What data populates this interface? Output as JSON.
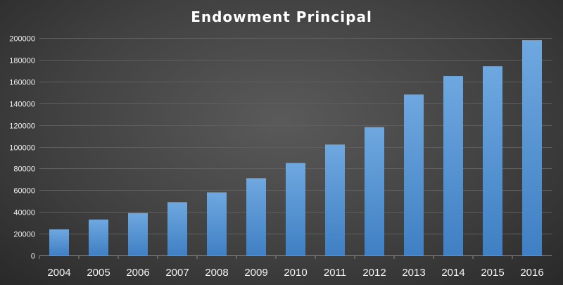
{
  "chart_data": {
    "type": "bar",
    "title": "Endowment Principal",
    "xlabel": "",
    "ylabel": "",
    "categories": [
      "2004",
      "2005",
      "2006",
      "2007",
      "2008",
      "2009",
      "2010",
      "2011",
      "2012",
      "2013",
      "2014",
      "2015",
      "2016"
    ],
    "values": [
      24000,
      33000,
      39000,
      49000,
      58000,
      71000,
      85000,
      102000,
      118000,
      148000,
      165000,
      174000,
      198000
    ],
    "ylim": [
      0,
      200000
    ],
    "yticks": [
      0,
      20000,
      40000,
      60000,
      80000,
      100000,
      120000,
      140000,
      160000,
      180000,
      200000
    ],
    "ytick_labels": [
      "0",
      "20000",
      "40000",
      "60000",
      "80000",
      "100000",
      "120000",
      "140000",
      "160000",
      "180000",
      "200000"
    ],
    "grid": true,
    "legend": "none",
    "colors": {
      "bar_top": "#6fa8e0",
      "bar_bottom": "#3f7fc3",
      "title": "#ffffff",
      "tick_text": "#f2f2f2",
      "gridline": "#5f5f5f"
    }
  }
}
